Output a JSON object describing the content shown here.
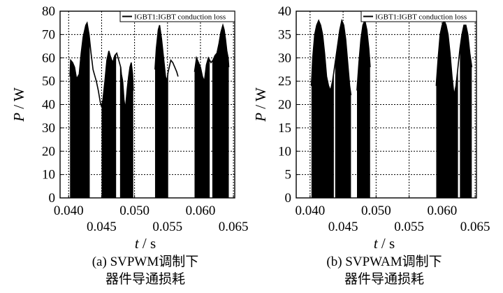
{
  "chart_data": [
    {
      "type": "area",
      "legend": "IGBT1:IGBT conduction loss",
      "legend_position": "top-right",
      "ylabel_var": "P",
      "ylabel_unit": "W",
      "xlabel_var": "t",
      "xlabel_unit": "s",
      "caption_line1": "(a)  SVPWM调制下",
      "caption_line2": "器件导通损耗",
      "xlim": [
        0.0387,
        0.0652
      ],
      "ylim": [
        0,
        80
      ],
      "grid": true,
      "x_ticks_top": [
        "0.040",
        "0.050",
        "0.060"
      ],
      "x_ticks_bottom": [
        "0.045",
        "0.055",
        "0.065"
      ],
      "x_ticks_top_values": [
        0.04,
        0.05,
        0.06
      ],
      "x_ticks_bottom_values": [
        0.045,
        0.055,
        0.065
      ],
      "y_ticks": [
        "0",
        "10",
        "20",
        "30",
        "40",
        "50",
        "60",
        "70",
        "80"
      ],
      "y_ticks_values": [
        0,
        10,
        20,
        30,
        40,
        50,
        60,
        70,
        80
      ],
      "x_grid": [
        0.04,
        0.045,
        0.05,
        0.055,
        0.06,
        0.065
      ],
      "y_grid": [
        0,
        10,
        20,
        30,
        40,
        50,
        60,
        70,
        80
      ],
      "series": [
        {
          "color": "#000000",
          "upper": [
            [
              0.0402,
              52
            ],
            [
              0.0403,
              59
            ],
            [
              0.0406,
              58
            ],
            [
              0.0409,
              56
            ],
            [
              0.0412,
              51
            ],
            [
              0.0416,
              53
            ],
            [
              0.0419,
              62
            ],
            [
              0.0422,
              69
            ],
            [
              0.0426,
              74
            ],
            [
              0.0428,
              75
            ],
            [
              0.0431,
              70
            ],
            [
              0.0434,
              62
            ],
            [
              0.0437,
              55
            ],
            [
              0.044,
              52
            ],
            [
              0.0442,
              50
            ],
            [
              0.0445,
              46
            ],
            [
              0.0448,
              41
            ],
            [
              0.045,
              39
            ],
            [
              0.0452,
              42
            ],
            [
              0.0455,
              50
            ],
            [
              0.0458,
              59
            ],
            [
              0.0461,
              63
            ],
            [
              0.0464,
              60
            ],
            [
              0.0467,
              58
            ],
            [
              0.047,
              61
            ],
            [
              0.0473,
              62
            ],
            [
              0.0476,
              59
            ],
            [
              0.0479,
              56
            ],
            [
              0.048,
              53
            ],
            [
              0.0482,
              50
            ],
            [
              0.0484,
              42
            ],
            [
              0.0485,
              40
            ],
            [
              0.0486,
              38
            ],
            [
              0.0487,
              41
            ],
            [
              0.0489,
              47
            ],
            [
              0.0491,
              52
            ],
            [
              0.0493,
              56
            ],
            [
              0.0495,
              58
            ],
            [
              0.0497,
              53
            ],
            [
              0.0498,
              46
            ],
            null,
            [
              0.0531,
              55
            ],
            [
              0.0533,
              64
            ],
            [
              0.0536,
              72
            ],
            [
              0.0538,
              74
            ],
            [
              0.0541,
              68
            ],
            [
              0.0544,
              60
            ],
            [
              0.0547,
              52
            ],
            [
              0.0549,
              50
            ],
            [
              0.0551,
              54
            ],
            [
              0.0555,
              59
            ],
            [
              0.0558,
              58
            ],
            [
              0.0561,
              56
            ],
            [
              0.0564,
              54
            ],
            [
              0.0566,
              52
            ],
            null,
            [
              0.0591,
              54
            ],
            [
              0.0594,
              60
            ],
            [
              0.0597,
              58
            ],
            [
              0.06,
              56
            ],
            [
              0.0603,
              52
            ],
            [
              0.0606,
              50
            ],
            [
              0.0609,
              57
            ],
            [
              0.0612,
              60
            ],
            [
              0.0616,
              58
            ],
            [
              0.0619,
              59
            ],
            [
              0.0622,
              61
            ],
            [
              0.0625,
              62
            ],
            [
              0.0628,
              66
            ],
            [
              0.0631,
              71
            ],
            [
              0.0634,
              74
            ],
            [
              0.0636,
              72
            ],
            [
              0.0638,
              68
            ],
            [
              0.064,
              63
            ],
            [
              0.0642,
              60
            ],
            [
              0.0643,
              56
            ]
          ],
          "bursts": [
            [
              0.0402,
              0.0432
            ],
            [
              0.045,
              0.0472
            ],
            [
              0.0478,
              0.0499
            ],
            [
              0.0531,
              0.0551
            ],
            [
              0.0591,
              0.0614
            ],
            [
              0.0618,
              0.0644
            ]
          ]
        }
      ]
    },
    {
      "type": "area",
      "legend": "IGBT1:IGBT conduction loss",
      "legend_position": "top-right",
      "ylabel_var": "P",
      "ylabel_unit": "W",
      "xlabel_var": "t",
      "xlabel_unit": "s",
      "caption_line1": "(b)  SVPWAM调制下",
      "caption_line2": "器件导通损耗",
      "xlim": [
        0.0379,
        0.0652
      ],
      "ylim": [
        0,
        40
      ],
      "grid": true,
      "x_ticks_top": [
        "0.040",
        "0.050",
        "0.060"
      ],
      "x_ticks_bottom": [
        "0.045",
        "0.055",
        "0.065"
      ],
      "x_ticks_top_values": [
        0.04,
        0.05,
        0.06
      ],
      "x_ticks_bottom_values": [
        0.045,
        0.055,
        0.065
      ],
      "y_ticks": [
        "0",
        "5",
        "10",
        "15",
        "20",
        "25",
        "30",
        "35",
        "40"
      ],
      "y_ticks_values": [
        0,
        5,
        10,
        15,
        20,
        25,
        30,
        35,
        40
      ],
      "x_grid": [
        0.04,
        0.045,
        0.05,
        0.055,
        0.06,
        0.065
      ],
      "y_grid": [
        0,
        5,
        10,
        15,
        20,
        25,
        30,
        35,
        40
      ],
      "series": [
        {
          "color": "#000000",
          "upper": [
            [
              0.0402,
              24
            ],
            [
              0.0404,
              30
            ],
            [
              0.0407,
              35
            ],
            [
              0.041,
              37
            ],
            [
              0.0413,
              38
            ],
            [
              0.0416,
              37
            ],
            [
              0.0419,
              35
            ],
            [
              0.0422,
              31
            ],
            [
              0.0425,
              26
            ],
            [
              0.0428,
              24
            ],
            [
              0.0431,
              23
            ],
            [
              0.0434,
              25
            ],
            [
              0.0437,
              28
            ],
            [
              0.0441,
              32
            ],
            [
              0.0445,
              36
            ],
            [
              0.0448,
              38
            ],
            [
              0.0451,
              37
            ],
            [
              0.0454,
              34
            ],
            [
              0.0457,
              29
            ],
            [
              0.046,
              24
            ],
            [
              0.0462,
              22
            ],
            null,
            [
              0.0471,
              23
            ],
            [
              0.0474,
              29
            ],
            [
              0.0477,
              34
            ],
            [
              0.048,
              37
            ],
            [
              0.0483,
              38
            ],
            [
              0.0486,
              36
            ],
            [
              0.0489,
              32
            ],
            [
              0.0491,
              28
            ],
            null,
            [
              0.0591,
              24
            ],
            [
              0.0594,
              30
            ],
            [
              0.0597,
              35
            ],
            [
              0.06,
              37
            ],
            [
              0.0603,
              38
            ],
            [
              0.0606,
              37
            ],
            [
              0.0609,
              35
            ],
            [
              0.0612,
              31
            ],
            [
              0.0615,
              26
            ],
            [
              0.0618,
              22
            ],
            [
              0.0621,
              24
            ],
            [
              0.0624,
              28
            ],
            [
              0.0627,
              32
            ],
            [
              0.063,
              35
            ],
            [
              0.0633,
              37
            ],
            [
              0.0636,
              37
            ],
            [
              0.0639,
              35
            ],
            [
              0.0642,
              31
            ],
            [
              0.0645,
              28
            ]
          ],
          "bursts": [
            [
              0.0402,
              0.0436
            ],
            [
              0.0438,
              0.0462
            ],
            [
              0.0471,
              0.0491
            ],
            [
              0.0591,
              0.0624
            ],
            [
              0.0627,
              0.0645
            ]
          ]
        }
      ]
    }
  ]
}
